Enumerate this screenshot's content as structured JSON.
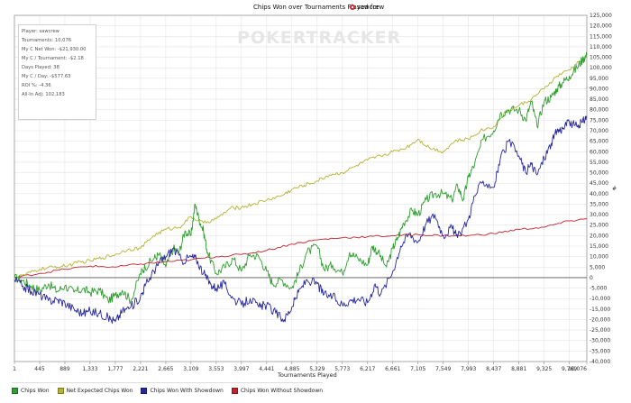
{
  "chart_data": {
    "type": "line",
    "title": "Chips Won over Tournaments Played for",
    "player": "sawcrew",
    "watermark": "POKERTRACKER",
    "xlabel": "Tournaments Played",
    "ylabel": "",
    "xlim": [
      1,
      10076
    ],
    "ylim": [
      -40000,
      125000
    ],
    "x_ticks": [
      "1",
      "445",
      "889",
      "1,333",
      "1,777",
      "2,221",
      "2,665",
      "3,109",
      "3,553",
      "3,997",
      "4,441",
      "4,885",
      "5,329",
      "5,773",
      "6,217",
      "6,661",
      "7,105",
      "7,549",
      "7,993",
      "8,437",
      "8,881",
      "9,325",
      "9,769",
      "10,076"
    ],
    "y_ticks": [
      "125,000",
      "120,000",
      "115,000",
      "110,000",
      "105,000",
      "100,000",
      "95,000",
      "90,000",
      "85,000",
      "80,000",
      "75,000",
      "70,000",
      "65,000",
      "60,000",
      "55,000",
      "50,000",
      "45,000",
      "40,000",
      "35,000",
      "30,000",
      "25,000",
      "20,000",
      "15,000",
      "10,000",
      "5,000",
      "0",
      "-5,000",
      "-10,000",
      "-15,000",
      "-20,000",
      "-25,000",
      "-30,000",
      "-35,000",
      "-40,000"
    ],
    "grid": true,
    "legend_position": "bottom",
    "series": [
      {
        "name": "Chips Won",
        "color": "#2e9e2e",
        "points": [
          [
            1,
            0
          ],
          [
            150,
            -1500
          ],
          [
            300,
            -4000
          ],
          [
            445,
            -6000
          ],
          [
            600,
            -3000
          ],
          [
            750,
            -6500
          ],
          [
            889,
            -4000
          ],
          [
            1050,
            -7000
          ],
          [
            1200,
            -5500
          ],
          [
            1333,
            -7000
          ],
          [
            1500,
            -6000
          ],
          [
            1650,
            -11000
          ],
          [
            1777,
            -8500
          ],
          [
            1900,
            -6000
          ],
          [
            2050,
            -11000
          ],
          [
            2221,
            2000
          ],
          [
            2300,
            5000
          ],
          [
            2450,
            9000
          ],
          [
            2550,
            11000
          ],
          [
            2665,
            5000
          ],
          [
            2800,
            14000
          ],
          [
            2900,
            12000
          ],
          [
            3000,
            22000
          ],
          [
            3109,
            20000
          ],
          [
            3180,
            35000
          ],
          [
            3250,
            28000
          ],
          [
            3330,
            22000
          ],
          [
            3400,
            12000
          ],
          [
            3553,
            2000
          ],
          [
            3700,
            5000
          ],
          [
            3850,
            9000
          ],
          [
            3997,
            3000
          ],
          [
            4150,
            11000
          ],
          [
            4300,
            10000
          ],
          [
            4441,
            3000
          ],
          [
            4550,
            -3000
          ],
          [
            4700,
            -1000
          ],
          [
            4885,
            -5000
          ],
          [
            5000,
            2000
          ],
          [
            5150,
            12000
          ],
          [
            5329,
            15000
          ],
          [
            5450,
            4000
          ],
          [
            5600,
            6000
          ],
          [
            5773,
            2000
          ],
          [
            5900,
            12000
          ],
          [
            6050,
            9000
          ],
          [
            6217,
            6000
          ],
          [
            6300,
            15000
          ],
          [
            6400,
            12000
          ],
          [
            6550,
            5000
          ],
          [
            6661,
            14000
          ],
          [
            6750,
            19000
          ],
          [
            6850,
            26000
          ],
          [
            7000,
            32000
          ],
          [
            7105,
            30000
          ],
          [
            7250,
            37000
          ],
          [
            7400,
            40000
          ],
          [
            7549,
            40000
          ],
          [
            7700,
            37000
          ],
          [
            7800,
            44000
          ],
          [
            7900,
            37000
          ],
          [
            7993,
            48000
          ],
          [
            8100,
            54000
          ],
          [
            8250,
            66000
          ],
          [
            8437,
            70000
          ],
          [
            8550,
            78000
          ],
          [
            8700,
            80000
          ],
          [
            8881,
            80000
          ],
          [
            9000,
            75000
          ],
          [
            9100,
            84000
          ],
          [
            9200,
            72000
          ],
          [
            9325,
            84000
          ],
          [
            9450,
            86000
          ],
          [
            9550,
            90000
          ],
          [
            9650,
            93000
          ],
          [
            9769,
            96000
          ],
          [
            9900,
            100000
          ],
          [
            10000,
            104000
          ],
          [
            10076,
            106000
          ]
        ]
      },
      {
        "name": "Net Expected Chips Won",
        "color": "#b3b334",
        "points": [
          [
            1,
            0
          ],
          [
            200,
            1500
          ],
          [
            445,
            4000
          ],
          [
            700,
            5000
          ],
          [
            889,
            5500
          ],
          [
            1100,
            7000
          ],
          [
            1333,
            8000
          ],
          [
            1550,
            9500
          ],
          [
            1777,
            11000
          ],
          [
            2000,
            13500
          ],
          [
            2221,
            14000
          ],
          [
            2450,
            20000
          ],
          [
            2665,
            23000
          ],
          [
            2900,
            24000
          ],
          [
            3109,
            29000
          ],
          [
            3330,
            26000
          ],
          [
            3553,
            28000
          ],
          [
            3800,
            33000
          ],
          [
            3997,
            33500
          ],
          [
            4200,
            35000
          ],
          [
            4441,
            37000
          ],
          [
            4700,
            39000
          ],
          [
            4885,
            42000
          ],
          [
            5100,
            44000
          ],
          [
            5329,
            46000
          ],
          [
            5550,
            49000
          ],
          [
            5773,
            50000
          ],
          [
            6000,
            53000
          ],
          [
            6217,
            56000
          ],
          [
            6450,
            58000
          ],
          [
            6661,
            60000
          ],
          [
            6900,
            62000
          ],
          [
            7105,
            66000
          ],
          [
            7300,
            62000
          ],
          [
            7549,
            60000
          ],
          [
            7750,
            65000
          ],
          [
            7993,
            66000
          ],
          [
            8200,
            70000
          ],
          [
            8437,
            72000
          ],
          [
            8650,
            79000
          ],
          [
            8881,
            82000
          ],
          [
            9100,
            85000
          ],
          [
            9325,
            90000
          ],
          [
            9550,
            96000
          ],
          [
            9769,
            99000
          ],
          [
            9950,
            103000
          ],
          [
            10076,
            105000
          ]
        ]
      },
      {
        "name": "Chips Won With Showdown",
        "color": "#27279e",
        "points": [
          [
            1,
            -1000
          ],
          [
            150,
            -4000
          ],
          [
            300,
            -6500
          ],
          [
            445,
            -8000
          ],
          [
            600,
            -11000
          ],
          [
            750,
            -10500
          ],
          [
            889,
            -12000
          ],
          [
            1050,
            -15000
          ],
          [
            1200,
            -17000
          ],
          [
            1333,
            -16000
          ],
          [
            1500,
            -17000
          ],
          [
            1650,
            -19000
          ],
          [
            1777,
            -21000
          ],
          [
            1900,
            -16000
          ],
          [
            2050,
            -14000
          ],
          [
            2221,
            -9000
          ],
          [
            2300,
            -4000
          ],
          [
            2450,
            3000
          ],
          [
            2550,
            7000
          ],
          [
            2665,
            10000
          ],
          [
            2800,
            14000
          ],
          [
            2950,
            8000
          ],
          [
            3109,
            10000
          ],
          [
            3200,
            9000
          ],
          [
            3330,
            2000
          ],
          [
            3450,
            -3000
          ],
          [
            3553,
            -5000
          ],
          [
            3700,
            -3000
          ],
          [
            3850,
            -10000
          ],
          [
            3997,
            -13000
          ],
          [
            4150,
            -10000
          ],
          [
            4300,
            -14000
          ],
          [
            4441,
            -13000
          ],
          [
            4600,
            -17000
          ],
          [
            4750,
            -20000
          ],
          [
            4885,
            -14000
          ],
          [
            5000,
            -7000
          ],
          [
            5150,
            -1000
          ],
          [
            5329,
            -3000
          ],
          [
            5450,
            -8000
          ],
          [
            5600,
            -9000
          ],
          [
            5773,
            -13000
          ],
          [
            5900,
            -11000
          ],
          [
            6050,
            -10000
          ],
          [
            6217,
            -12000
          ],
          [
            6350,
            -3000
          ],
          [
            6450,
            -8000
          ],
          [
            6661,
            3000
          ],
          [
            6800,
            15000
          ],
          [
            6950,
            21000
          ],
          [
            7105,
            17000
          ],
          [
            7250,
            26000
          ],
          [
            7400,
            30000
          ],
          [
            7549,
            20000
          ],
          [
            7700,
            24000
          ],
          [
            7800,
            19000
          ],
          [
            7993,
            28000
          ],
          [
            8100,
            39000
          ],
          [
            8250,
            46000
          ],
          [
            8437,
            43000
          ],
          [
            8550,
            56000
          ],
          [
            8700,
            65000
          ],
          [
            8881,
            58000
          ],
          [
            9000,
            50000
          ],
          [
            9100,
            54000
          ],
          [
            9200,
            49000
          ],
          [
            9325,
            57000
          ],
          [
            9450,
            64000
          ],
          [
            9550,
            70000
          ],
          [
            9650,
            71000
          ],
          [
            9769,
            74000
          ],
          [
            9900,
            72000
          ],
          [
            10000,
            74000
          ],
          [
            10076,
            77000
          ]
        ]
      },
      {
        "name": "Chips Won Without Showdown",
        "color": "#c0232d",
        "points": [
          [
            1,
            0
          ],
          [
            445,
            2000
          ],
          [
            889,
            4000
          ],
          [
            1333,
            5500
          ],
          [
            1777,
            5000
          ],
          [
            2221,
            6500
          ],
          [
            2665,
            7500
          ],
          [
            3109,
            8500
          ],
          [
            3553,
            10000
          ],
          [
            3997,
            11000
          ],
          [
            4441,
            13000
          ],
          [
            4885,
            16000
          ],
          [
            5329,
            18000
          ],
          [
            5773,
            19000
          ],
          [
            6217,
            19500
          ],
          [
            6661,
            20000
          ],
          [
            7105,
            20500
          ],
          [
            7549,
            20000
          ],
          [
            7993,
            20000
          ],
          [
            8437,
            21000
          ],
          [
            8881,
            23000
          ],
          [
            9325,
            24000
          ],
          [
            9769,
            27000
          ],
          [
            10076,
            28000
          ]
        ]
      }
    ]
  },
  "stats": {
    "player": "Player: sawcrew",
    "tournaments": "Tournaments: 10,076",
    "net_won": "My C Net Won: -$21,930.00",
    "per_tournament": "My C / Tournament: -$2.18",
    "days_played": "Days Played: 38",
    "per_day": "My C / Day: -$577.63",
    "roi": "ROI %: -4.36",
    "allin_adj": "All-In Adj: 102,183"
  }
}
